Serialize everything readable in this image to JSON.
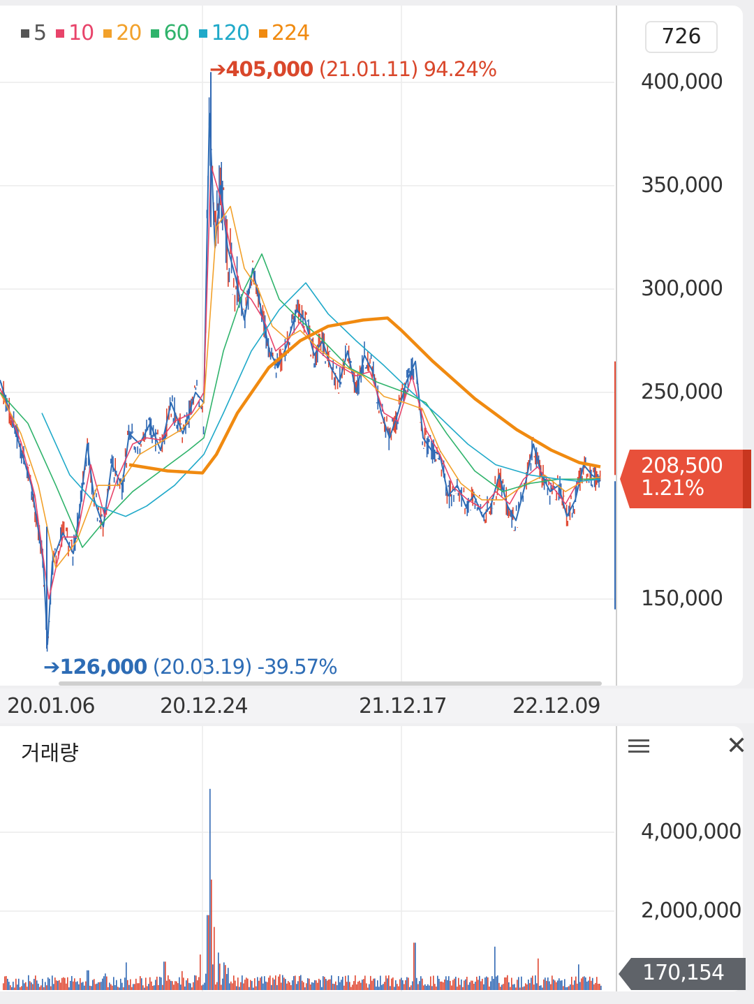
{
  "legend": [
    {
      "label": "5",
      "color": "#555555"
    },
    {
      "label": "10",
      "color": "#e8446a"
    },
    {
      "label": "20",
      "color": "#f2a12b"
    },
    {
      "label": "60",
      "color": "#2fb36b"
    },
    {
      "label": "120",
      "color": "#1fa9c9"
    },
    {
      "label": "224",
      "color": "#f08a10"
    }
  ],
  "count_box": "726",
  "annotations": {
    "high": {
      "price": "405,000",
      "date": "(21.01.11)",
      "pct": "94.24%"
    },
    "low": {
      "price": "126,000",
      "date": "(20.03.19)",
      "pct": "-39.57%"
    }
  },
  "current": {
    "price": "208,500",
    "change": "1.21%"
  },
  "volume": {
    "title": "거래량",
    "current": "170,154"
  },
  "chart_data": [
    {
      "type": "line",
      "title": "",
      "x_tick_labels": [
        "20.01.06",
        "20.12.24",
        "21.12.17",
        "22.12.09"
      ],
      "y_tick_labels": [
        "400,000",
        "350,000",
        "300,000",
        "250,000",
        "150,000"
      ],
      "y_ticks": [
        400000,
        350000,
        300000,
        250000,
        150000
      ],
      "ylim": [
        110000,
        420000
      ],
      "grid": true,
      "legend_position": "top-left",
      "series": [
        {
          "name": "5",
          "color": "#2d6cb5",
          "points": [
            [
              0,
              256000
            ],
            [
              25,
              228000
            ],
            [
              45,
              205000
            ],
            [
              62,
              168000
            ],
            [
              68,
              128000
            ],
            [
              75,
              168000
            ],
            [
              90,
              182000
            ],
            [
              105,
              172000
            ],
            [
              115,
              195000
            ],
            [
              125,
              225000
            ],
            [
              135,
              198000
            ],
            [
              148,
              185000
            ],
            [
              160,
              215000
            ],
            [
              175,
              205000
            ],
            [
              185,
              230000
            ],
            [
              200,
              225000
            ],
            [
              215,
              235000
            ],
            [
              230,
              222000
            ],
            [
              245,
              245000
            ],
            [
              262,
              230000
            ],
            [
              280,
              250000
            ],
            [
              292,
              245000
            ],
            [
              300,
              385000
            ],
            [
              308,
              320000
            ],
            [
              316,
              350000
            ],
            [
              326,
              320000
            ],
            [
              338,
              305000
            ],
            [
              350,
              285000
            ],
            [
              362,
              310000
            ],
            [
              374,
              290000
            ],
            [
              386,
              270000
            ],
            [
              398,
              262000
            ],
            [
              410,
              272000
            ],
            [
              425,
              290000
            ],
            [
              437,
              285000
            ],
            [
              450,
              268000
            ],
            [
              462,
              275000
            ],
            [
              474,
              262000
            ],
            [
              486,
              255000
            ],
            [
              498,
              270000
            ],
            [
              510,
              250000
            ],
            [
              522,
              268000
            ],
            [
              534,
              260000
            ],
            [
              546,
              240000
            ],
            [
              558,
              228000
            ],
            [
              570,
              240000
            ],
            [
              582,
              255000
            ],
            [
              595,
              265000
            ],
            [
              606,
              228000
            ],
            [
              618,
              222000
            ],
            [
              630,
              220000
            ],
            [
              642,
              200000
            ],
            [
              655,
              205000
            ],
            [
              667,
              195000
            ],
            [
              679,
              200000
            ],
            [
              691,
              190000
            ],
            [
              703,
              195000
            ],
            [
              715,
              210000
            ],
            [
              727,
              195000
            ],
            [
              739,
              188000
            ],
            [
              752,
              205000
            ],
            [
              764,
              225000
            ],
            [
              776,
              210000
            ],
            [
              788,
              202000
            ],
            [
              800,
              205000
            ],
            [
              812,
              190000
            ],
            [
              824,
              198000
            ],
            [
              836,
              215000
            ],
            [
              848,
              210000
            ],
            [
              860,
              207000
            ]
          ]
        },
        {
          "name": "10",
          "color": "#e8446a",
          "points": [
            [
              0,
              252000
            ],
            [
              30,
              226000
            ],
            [
              50,
              200000
            ],
            [
              70,
              150000
            ],
            [
              90,
              180000
            ],
            [
              110,
              180000
            ],
            [
              130,
              215000
            ],
            [
              150,
              190000
            ],
            [
              170,
              210000
            ],
            [
              190,
              225000
            ],
            [
              210,
              228000
            ],
            [
              230,
              227000
            ],
            [
              250,
              236000
            ],
            [
              275,
              240000
            ],
            [
              292,
              250000
            ],
            [
              302,
              360000
            ],
            [
              315,
              345000
            ],
            [
              330,
              320000
            ],
            [
              345,
              300000
            ],
            [
              360,
              295000
            ],
            [
              378,
              285000
            ],
            [
              395,
              270000
            ],
            [
              412,
              275000
            ],
            [
              430,
              284000
            ],
            [
              450,
              272000
            ],
            [
              470,
              266000
            ],
            [
              490,
              262000
            ],
            [
              510,
              258000
            ],
            [
              530,
              260000
            ],
            [
              550,
              240000
            ],
            [
              570,
              236000
            ],
            [
              590,
              258000
            ],
            [
              610,
              232000
            ],
            [
              630,
              220000
            ],
            [
              650,
              204000
            ],
            [
              670,
              198000
            ],
            [
              690,
              194000
            ],
            [
              710,
              202000
            ],
            [
              730,
              196000
            ],
            [
              750,
              208000
            ],
            [
              770,
              214000
            ],
            [
              790,
              205000
            ],
            [
              810,
              196000
            ],
            [
              830,
              208000
            ],
            [
              860,
              208000
            ]
          ]
        },
        {
          "name": "20",
          "color": "#f2a12b",
          "points": [
            [
              0,
              250000
            ],
            [
              30,
              230000
            ],
            [
              55,
              205000
            ],
            [
              80,
              165000
            ],
            [
              110,
              178000
            ],
            [
              140,
              205000
            ],
            [
              170,
              205000
            ],
            [
              200,
              220000
            ],
            [
              230,
              226000
            ],
            [
              260,
              232000
            ],
            [
              292,
              245000
            ],
            [
              310,
              330000
            ],
            [
              330,
              340000
            ],
            [
              350,
              310000
            ],
            [
              370,
              300000
            ],
            [
              390,
              282000
            ],
            [
              410,
              276000
            ],
            [
              430,
              280000
            ],
            [
              460,
              270000
            ],
            [
              490,
              263000
            ],
            [
              520,
              258000
            ],
            [
              550,
              248000
            ],
            [
              580,
              245000
            ],
            [
              605,
              242000
            ],
            [
              630,
              222000
            ],
            [
              660,
              206000
            ],
            [
              690,
              198000
            ],
            [
              720,
              198000
            ],
            [
              750,
              205000
            ],
            [
              780,
              210000
            ],
            [
              810,
              202000
            ],
            [
              840,
              208000
            ],
            [
              860,
              209000
            ]
          ]
        },
        {
          "name": "60",
          "color": "#2fb36b",
          "points": [
            [
              0,
              250000
            ],
            [
              40,
              235000
            ],
            [
              80,
              205000
            ],
            [
              118,
              175000
            ],
            [
              150,
              188000
            ],
            [
              190,
              202000
            ],
            [
              230,
              212000
            ],
            [
              270,
              222000
            ],
            [
              292,
              228000
            ],
            [
              320,
              270000
            ],
            [
              350,
              300000
            ],
            [
              375,
              317000
            ],
            [
              400,
              295000
            ],
            [
              430,
              285000
            ],
            [
              460,
              276000
            ],
            [
              500,
              262000
            ],
            [
              540,
              255000
            ],
            [
              580,
              250000
            ],
            [
              610,
              245000
            ],
            [
              640,
              230000
            ],
            [
              680,
              212000
            ],
            [
              720,
              202000
            ],
            [
              760,
              206000
            ],
            [
              800,
              208000
            ],
            [
              840,
              208000
            ],
            [
              860,
              208000
            ]
          ]
        },
        {
          "name": "120",
          "color": "#1fa9c9",
          "points": [
            [
              60,
              240000
            ],
            [
              100,
              210000
            ],
            [
              140,
              195000
            ],
            [
              180,
              190000
            ],
            [
              210,
              195000
            ],
            [
              250,
              205000
            ],
            [
              292,
              220000
            ],
            [
              320,
              240000
            ],
            [
              360,
              270000
            ],
            [
              400,
              290000
            ],
            [
              438,
              303000
            ],
            [
              470,
              288000
            ],
            [
              510,
              275000
            ],
            [
              550,
              263000
            ],
            [
              590,
              250000
            ],
            [
              630,
              238000
            ],
            [
              670,
              225000
            ],
            [
              710,
              215000
            ],
            [
              760,
              210000
            ],
            [
              800,
              208000
            ],
            [
              830,
              207000
            ],
            [
              860,
              208000
            ]
          ]
        },
        {
          "name": "224",
          "color": "#f08a10",
          "points": [
            [
              185,
              215000
            ],
            [
              240,
              212000
            ],
            [
              290,
              211000
            ],
            [
              310,
              220000
            ],
            [
              340,
              240000
            ],
            [
              385,
              262000
            ],
            [
              430,
              275000
            ],
            [
              470,
              282000
            ],
            [
              520,
              285000
            ],
            [
              555,
              286000
            ],
            [
              575,
              280000
            ],
            [
              620,
              265000
            ],
            [
              680,
              247000
            ],
            [
              740,
              232000
            ],
            [
              790,
              222000
            ],
            [
              830,
              216000
            ],
            [
              860,
              214000
            ]
          ]
        }
      ]
    },
    {
      "type": "bar",
      "title": "거래량",
      "y_tick_labels": [
        "4,000,000",
        "2,000,000"
      ],
      "y_ticks": [
        4000000,
        2000000
      ],
      "ylim": [
        0,
        5200000
      ],
      "spikes": [
        [
          68,
          320000
        ],
        [
          125,
          500000
        ],
        [
          150,
          420000
        ],
        [
          180,
          700000
        ],
        [
          235,
          720000
        ],
        [
          260,
          480000
        ],
        [
          286,
          900000
        ],
        [
          297,
          1900000
        ],
        [
          300,
          5100000
        ],
        [
          302,
          2800000
        ],
        [
          306,
          1600000
        ],
        [
          312,
          950000
        ],
        [
          320,
          700000
        ],
        [
          400,
          400000
        ],
        [
          440,
          300000
        ],
        [
          520,
          280000
        ],
        [
          593,
          1200000
        ],
        [
          640,
          250000
        ],
        [
          708,
          1100000
        ],
        [
          770,
          800000
        ],
        [
          828,
          650000
        ]
      ],
      "baseline_volume": [
        60000,
        380000
      ]
    }
  ]
}
